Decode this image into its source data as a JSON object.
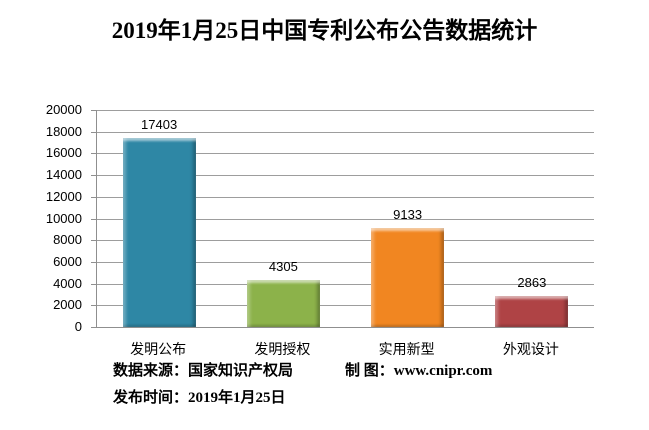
{
  "title": "2019年1月25日中国专利公布公告数据统计",
  "chart_data": {
    "type": "bar",
    "title": "2019年1月25日中国专利公布公告数据统计",
    "categories": [
      "发明公布",
      "发明授权",
      "实用新型",
      "外观设计"
    ],
    "values": [
      17403,
      4305,
      9133,
      2863
    ],
    "bar_colors": [
      "#2E87A5",
      "#8CB24A",
      "#F18621",
      "#AF4345"
    ],
    "ylim": [
      0,
      20000
    ],
    "ytick_step": 2000,
    "grid": true,
    "legend": "none",
    "value_labels": true,
    "xlabel": "",
    "ylabel": ""
  },
  "footer": {
    "source_label": "数据来源：国家知识产权局",
    "credit_label": "制 图：www.cnipr.com",
    "date_label": "发布时间：2019年1月25日"
  }
}
